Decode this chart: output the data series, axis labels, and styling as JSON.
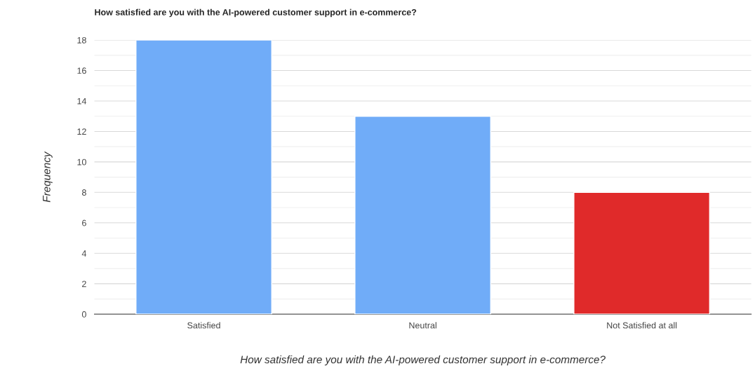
{
  "chart_data": {
    "type": "bar",
    "title": "How satisfied are you with the AI-powered customer support in e-commerce?",
    "xlabel": "How satisfied are you with the AI-powered customer support in e-commerce?",
    "ylabel": "Frequency",
    "categories": [
      "Satisfied",
      "Neutral",
      "Not Satisfied at all"
    ],
    "values": [
      18,
      13,
      8
    ],
    "colors": [
      "#70acf8",
      "#70acf8",
      "#e02a2a"
    ],
    "ylim": [
      0,
      18
    ],
    "yticks": [
      0,
      {
        "value": 1,
        "label": null
      },
      2,
      {
        "value": 3,
        "label": null
      },
      4,
      {
        "value": 5,
        "label": null
      },
      6,
      {
        "value": 7,
        "label": null
      },
      8,
      {
        "value": 9,
        "label": null
      },
      10,
      {
        "value": 11,
        "label": null
      },
      12,
      {
        "value": 13,
        "label": null
      },
      14,
      {
        "value": 15,
        "label": null
      },
      16,
      {
        "value": 17,
        "label": null
      },
      18
    ],
    "grid": "y"
  }
}
